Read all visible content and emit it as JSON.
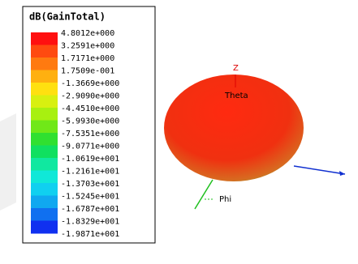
{
  "legend": {
    "title": "dB(GainTotal)",
    "labels": [
      "4.8012e+000",
      "3.2591e+000",
      "1.7171e+000",
      "1.7509e-001",
      "-1.3669e+000",
      "-2.9090e+000",
      "-4.4510e+000",
      "-5.9930e+000",
      "-7.5351e+000",
      "-9.0771e+000",
      "-1.0619e+001",
      "-1.2161e+001",
      "-1.3703e+001",
      "-1.5245e+001",
      "-1.6787e+001",
      "-1.8329e+001",
      "-1.9871e+001"
    ],
    "colors": [
      "#ff1010",
      "#ff4a10",
      "#ff7a10",
      "#ffb010",
      "#ffe010",
      "#d8f010",
      "#a8f010",
      "#70e818",
      "#30e030",
      "#10e060",
      "#10e8a0",
      "#10e8d8",
      "#10d0f0",
      "#10a8f0",
      "#1070f0",
      "#1030f0"
    ]
  },
  "axes": {
    "z": "Z",
    "theta": "Theta",
    "phi": "Phi"
  }
}
